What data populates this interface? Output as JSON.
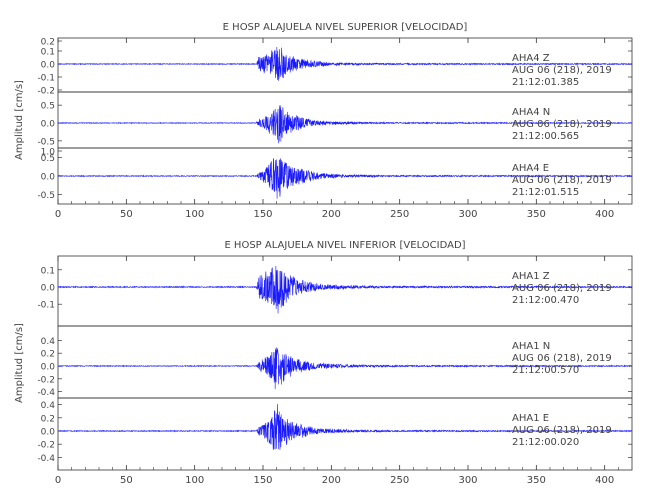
{
  "colors": {
    "trace": "#1a1aff",
    "axis": "#333333",
    "text": "#444444",
    "grid": "#bbbbbb"
  },
  "chart_data": [
    {
      "type": "line",
      "title": "E HOSP ALAJUELA NIVEL SUPERIOR [VELOCIDAD]",
      "ylabel": "Amplitud [cm/s]",
      "xlabel": "",
      "xlim": [
        0,
        420
      ],
      "xticks": [
        0,
        50,
        100,
        150,
        200,
        250,
        300,
        350,
        400
      ],
      "grid": false,
      "channels": [
        {
          "station": "AHA4",
          "component": "Z",
          "date": "AUG 06 (218), 2019",
          "time": "21:12:01.385",
          "ylim": [
            -0.2,
            0.2
          ],
          "yticks": [
            "0.2",
            "0.1",
            "0.0",
            "-0.1",
            "-0.2"
          ],
          "waveform": {
            "onset": 145,
            "peak_time": 160,
            "peak": 0.17,
            "pre_amp": 0.06,
            "noise": 0.003,
            "peaks": [
              [
                147,
                0.06
              ],
              [
                155,
                0.09
              ],
              [
                158,
                0.14
              ],
              [
                160,
                0.17
              ],
              [
                162,
                0.15
              ],
              [
                166,
                0.1
              ],
              [
                172,
                0.06
              ],
              [
                185,
                0.03
              ],
              [
                200,
                0.012
              ],
              [
                230,
                0.006
              ],
              [
                420,
                0.004
              ]
            ]
          }
        },
        {
          "station": "AHA4",
          "component": "N",
          "date": "AUG 06 (218), 2019",
          "time": "21:12:00.565",
          "ylim": [
            -0.7,
            0.7
          ],
          "yticks": [
            "0.5",
            "0.0",
            "-0.5"
          ],
          "waveform": {
            "onset": 145,
            "peak_time": 162,
            "peak": 0.62,
            "pre_amp": 0.15,
            "noise": 0.01,
            "peaks": [
              [
                147,
                0.12
              ],
              [
                152,
                0.2
              ],
              [
                157,
                0.4
              ],
              [
                160,
                0.55
              ],
              [
                162,
                0.62
              ],
              [
                166,
                0.4
              ],
              [
                172,
                0.25
              ],
              [
                185,
                0.1
              ],
              [
                200,
                0.05
              ],
              [
                230,
                0.02
              ],
              [
                420,
                0.012
              ]
            ]
          }
        },
        {
          "station": "AHA4",
          "component": "E",
          "date": "AUG 06 (218), 2019",
          "time": "21:12:01.515",
          "ylim": [
            -0.75,
            0.75
          ],
          "yticks": [
            "1.0",
            "0.5",
            "0.0",
            "-0.5"
          ],
          "waveform": {
            "onset": 145,
            "peak_time": 160,
            "peak": 0.7,
            "pre_amp": 0.12,
            "noise": 0.012,
            "peaks": [
              [
                147,
                0.1
              ],
              [
                152,
                0.25
              ],
              [
                157,
                0.5
              ],
              [
                160,
                0.7
              ],
              [
                163,
                0.6
              ],
              [
                168,
                0.4
              ],
              [
                175,
                0.25
              ],
              [
                190,
                0.1
              ],
              [
                210,
                0.04
              ],
              [
                240,
                0.02
              ],
              [
                420,
                0.014
              ]
            ]
          }
        }
      ]
    },
    {
      "type": "line",
      "title": "E HOSP ALAJUELA NIVEL INFERIOR [VELOCIDAD]",
      "ylabel": "Amplitud [cm/s]",
      "xlabel": "",
      "xlim": [
        0,
        420
      ],
      "xticks": [
        0,
        50,
        100,
        150,
        200,
        250,
        300,
        350,
        400
      ],
      "grid": false,
      "channels": [
        {
          "station": "AHA1",
          "component": "Z",
          "date": "AUG 06 (218), 2019",
          "time": "21:12:00.470",
          "ylim": [
            -0.18,
            0.18
          ],
          "yticks": [
            "0.1",
            "0.0",
            "-0.1"
          ],
          "waveform": {
            "onset": 145,
            "peak_time": 161,
            "peak": 0.17,
            "pre_amp": 0.06,
            "noise": 0.003,
            "peaks": [
              [
                147,
                0.07
              ],
              [
                152,
                0.1
              ],
              [
                157,
                0.13
              ],
              [
                161,
                0.17
              ],
              [
                164,
                0.14
              ],
              [
                168,
                0.09
              ],
              [
                175,
                0.05
              ],
              [
                190,
                0.02
              ],
              [
                210,
                0.01
              ],
              [
                240,
                0.006
              ],
              [
                420,
                0.004
              ]
            ]
          }
        },
        {
          "station": "AHA1",
          "component": "N",
          "date": "AUG 06 (218), 2019",
          "time": "21:12:00.570",
          "ylim": [
            -0.5,
            0.5
          ],
          "yticks": [
            "0.4",
            "0.2",
            "0.0",
            "-0.2",
            "-0.4"
          ],
          "waveform": {
            "onset": 145,
            "peak_time": 160,
            "peak": 0.45,
            "pre_amp": 0.1,
            "noise": 0.007,
            "peaks": [
              [
                147,
                0.08
              ],
              [
                152,
                0.14
              ],
              [
                157,
                0.25
              ],
              [
                160,
                0.45
              ],
              [
                163,
                0.3
              ],
              [
                168,
                0.2
              ],
              [
                175,
                0.12
              ],
              [
                190,
                0.05
              ],
              [
                210,
                0.025
              ],
              [
                240,
                0.012
              ],
              [
                420,
                0.008
              ]
            ]
          }
        },
        {
          "station": "AHA1",
          "component": "E",
          "date": "AUG 06 (218), 2019",
          "time": "21:12:00.020",
          "ylim": [
            -0.5,
            0.5
          ],
          "yticks": [
            "0.4",
            "0.2",
            "0.0",
            "-0.2",
            "-0.4"
          ],
          "waveform": {
            "onset": 145,
            "peak_time": 160,
            "peak": 0.45,
            "pre_amp": 0.1,
            "noise": 0.007,
            "peaks": [
              [
                147,
                0.08
              ],
              [
                152,
                0.15
              ],
              [
                157,
                0.28
              ],
              [
                160,
                0.45
              ],
              [
                163,
                0.32
              ],
              [
                168,
                0.2
              ],
              [
                175,
                0.12
              ],
              [
                190,
                0.05
              ],
              [
                210,
                0.025
              ],
              [
                240,
                0.012
              ],
              [
                420,
                0.008
              ]
            ]
          }
        }
      ]
    }
  ]
}
